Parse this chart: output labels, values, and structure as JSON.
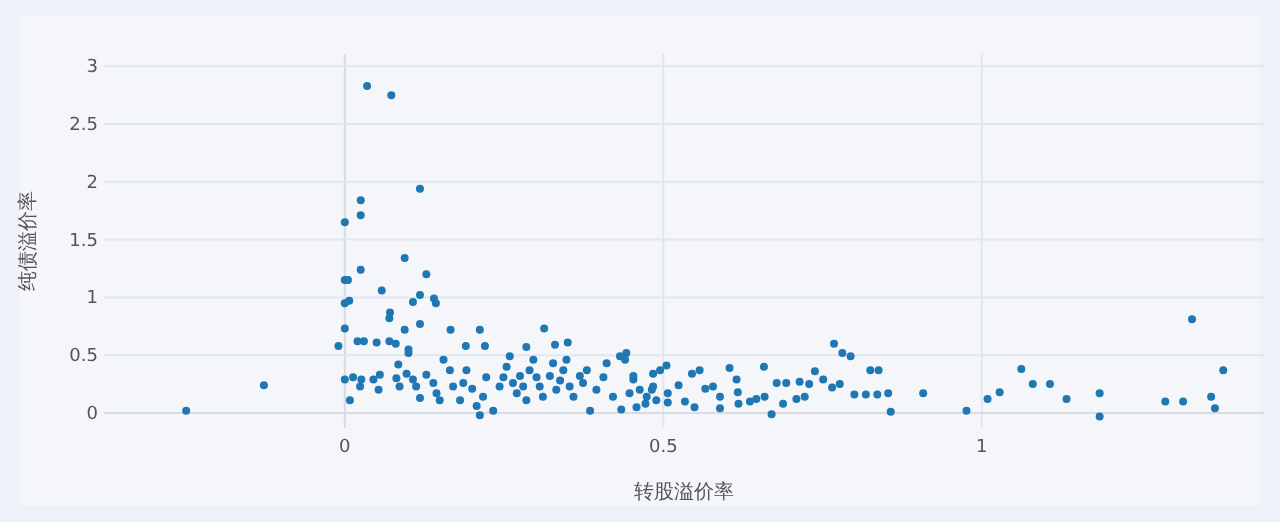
{
  "chart_data": {
    "type": "scatter",
    "xlabel": "转股溢价率",
    "ylabel": "纯债溢价率",
    "x": [
      -0.249,
      -0.127,
      0.035,
      0.073,
      0.118,
      0.0,
      0.025,
      0.025,
      0.094,
      0.025,
      0.128,
      0.0,
      0.005,
      0.058,
      0.118,
      0.0,
      0.007,
      0.107,
      0.14,
      0.143,
      0.071,
      0.07,
      0.118,
      0.0,
      0.094,
      0.166,
      0.212,
      0.313,
      -0.01,
      0.02,
      0.03,
      0.05,
      0.07,
      0.08,
      0.1,
      0.1,
      0.19,
      0.22,
      0.285,
      0.33,
      0.35,
      1.33,
      1.379,
      1.36,
      1.366,
      1.316,
      1.288,
      1.185,
      1.185,
      1.133,
      1.107,
      1.08,
      1.062,
      1.028,
      1.009,
      0.976,
      0.908,
      0.857,
      0.853,
      0.836,
      0.818,
      0.8,
      0.825,
      0.838,
      0.768,
      0.781,
      0.794,
      0.777,
      0.765,
      0.751,
      0.738,
      0.729,
      0.714,
      0.722,
      0.709,
      0.693,
      0.678,
      0.688,
      0.67,
      0.658,
      0.659,
      0.646,
      0.636,
      0.617,
      0.618,
      0.615,
      0.604,
      0.589,
      0.589,
      0.578,
      0.566,
      0.557,
      0.545,
      0.549,
      0.534,
      0.524,
      0.507,
      0.505,
      0.495,
      0.507,
      0.489,
      0.482,
      0.484,
      0.472,
      0.458,
      0.453,
      0.447,
      0.44,
      0.434,
      0.0,
      0.008,
      0.013,
      0.026,
      0.024,
      0.045,
      0.053,
      0.055,
      0.081,
      0.086,
      0.084,
      0.097,
      0.107,
      0.112,
      0.118,
      0.128,
      0.139,
      0.144,
      0.149,
      0.155,
      0.165,
      0.17,
      0.181,
      0.186,
      0.191,
      0.2,
      0.207,
      0.212,
      0.217,
      0.222,
      0.233,
      0.243,
      0.249,
      0.254,
      0.259,
      0.264,
      0.27,
      0.275,
      0.28,
      0.285,
      0.29,
      0.296,
      0.301,
      0.306,
      0.311,
      0.322,
      0.327,
      0.332,
      0.338,
      0.343,
      0.348,
      0.353,
      0.359,
      0.369,
      0.374,
      0.38,
      0.385,
      0.395,
      0.406,
      0.411,
      0.421,
      0.432,
      0.442,
      0.453,
      0.463,
      0.474,
      0.484
    ],
    "values": [
      0.02,
      0.24,
      2.83,
      2.75,
      1.94,
      1.65,
      1.84,
      1.71,
      1.34,
      1.24,
      1.2,
      1.15,
      1.15,
      1.06,
      1.02,
      0.95,
      0.97,
      0.96,
      0.99,
      0.95,
      0.87,
      0.82,
      0.77,
      0.73,
      0.72,
      0.72,
      0.72,
      0.73,
      0.58,
      0.62,
      0.62,
      0.61,
      0.62,
      0.6,
      0.55,
      0.52,
      0.58,
      0.58,
      0.57,
      0.59,
      0.61,
      0.81,
      0.37,
      0.14,
      0.04,
      0.1,
      0.1,
      0.17,
      -0.03,
      0.12,
      0.25,
      0.25,
      0.38,
      0.18,
      0.12,
      0.02,
      0.17,
      0.01,
      0.17,
      0.16,
      0.16,
      0.16,
      0.37,
      0.37,
      0.6,
      0.52,
      0.49,
      0.25,
      0.22,
      0.29,
      0.36,
      0.25,
      0.27,
      0.14,
      0.12,
      0.26,
      0.26,
      0.08,
      -0.01,
      0.4,
      0.14,
      0.12,
      0.1,
      0.18,
      0.08,
      0.29,
      0.39,
      0.14,
      0.04,
      0.23,
      0.21,
      0.37,
      0.34,
      0.05,
      0.1,
      0.24,
      0.17,
      0.41,
      0.37,
      0.09,
      0.11,
      0.2,
      0.34,
      0.08,
      0.05,
      0.29,
      0.17,
      0.46,
      0.03,
      0.29,
      0.11,
      0.31,
      0.29,
      0.23,
      0.29,
      0.2,
      0.33,
      0.3,
      0.23,
      0.42,
      0.34,
      0.29,
      0.23,
      0.13,
      0.33,
      0.26,
      0.17,
      0.11,
      0.46,
      0.37,
      0.23,
      0.11,
      0.26,
      0.37,
      0.21,
      0.06,
      -0.02,
      0.14,
      0.31,
      0.02,
      0.23,
      0.31,
      0.4,
      0.49,
      0.26,
      0.17,
      0.32,
      0.23,
      0.11,
      0.37,
      0.46,
      0.31,
      0.23,
      0.14,
      0.32,
      0.43,
      0.2,
      0.28,
      0.37,
      0.46,
      0.23,
      0.14,
      0.32,
      0.26,
      0.37,
      0.02,
      0.2,
      0.31,
      0.43,
      0.14,
      0.49,
      0.52,
      0.32,
      0.2,
      0.14,
      0.23
    ],
    "color": "#1f77b4",
    "marker": "circle",
    "grid": true,
    "xlim": [
      -0.378,
      1.443
    ],
    "ylim": [
      -0.13,
      3.106
    ],
    "xticks": [
      0,
      0.5,
      1
    ],
    "yticks": [
      0,
      0.5,
      1,
      1.5,
      2,
      2.5,
      3
    ]
  }
}
